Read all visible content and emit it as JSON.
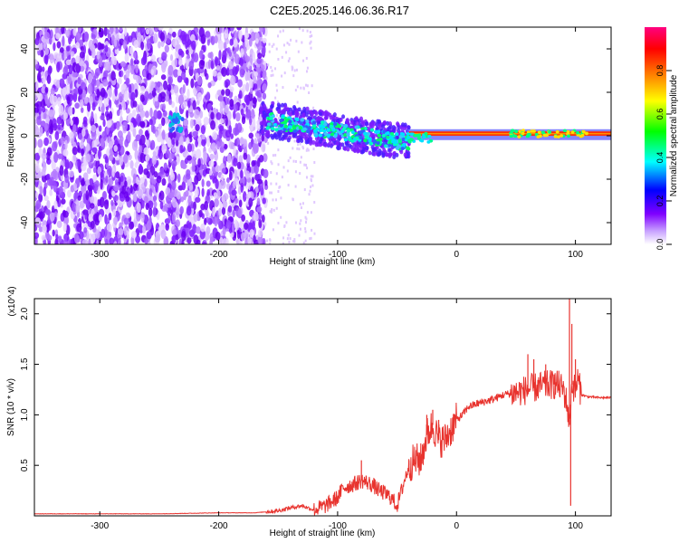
{
  "title": "C2E5.2025.146.06.36.R17",
  "chart_data": [
    {
      "type": "heatmap",
      "xlabel": "Height of straight line (km)",
      "ylabel": "Frequency (Hz)",
      "xlim": [
        -355,
        130
      ],
      "ylim": [
        -50,
        50
      ],
      "xticks": [
        -300,
        -200,
        -100,
        0,
        100
      ],
      "xtick_labels": [
        "-300",
        "-200",
        "-100",
        "0",
        "100"
      ],
      "yticks": [
        -40,
        -20,
        0,
        20,
        40
      ],
      "ytick_labels": [
        "-40",
        "-20",
        "0",
        "20",
        "40"
      ],
      "colorbar": {
        "label": "Normalized spectral amplitude",
        "range": [
          0,
          1
        ],
        "ticks": [
          0.0,
          0.2,
          0.4,
          0.6,
          0.8
        ],
        "tick_labels": [
          "0.0",
          "0.2",
          "0.4",
          "0.6",
          "0.8"
        ],
        "colors": [
          "#ffffff",
          "#7f00ff",
          "#0000ff",
          "#00ffff",
          "#00ff00",
          "#ffff00",
          "#ff8000",
          "#ff0000",
          "#ff0080"
        ]
      },
      "regions": [
        {
          "x": [
            -355,
            -160
          ],
          "freq": [
            -50,
            50
          ],
          "amplitude": 0.1
        },
        {
          "x": [
            -165,
            -120
          ],
          "freq": [
            -5,
            15
          ],
          "amplitude": 0.35
        },
        {
          "x": [
            -120,
            -60
          ],
          "freq": [
            -8,
            10
          ],
          "amplitude": 0.4
        },
        {
          "x": [
            -60,
            -40
          ],
          "freq": [
            -4,
            3
          ],
          "amplitude": 0.45
        },
        {
          "x": [
            -40,
            130
          ],
          "freq": [
            0,
            2
          ],
          "amplitude": 0.9
        },
        {
          "x": [
            45,
            110
          ],
          "freq": [
            -2,
            4
          ],
          "amplitude": 0.6
        }
      ],
      "grid": false
    },
    {
      "type": "line",
      "xlabel": "Height of straight line (km)",
      "ylabel": "SNR (10 * v/v)",
      "y_multiplier": "(x10^4)",
      "xlim": [
        -355,
        130
      ],
      "ylim": [
        0,
        2.15
      ],
      "xticks": [
        -300,
        -200,
        -100,
        0,
        100
      ],
      "xtick_labels": [
        "-300",
        "-200",
        "-100",
        "0",
        "100"
      ],
      "yticks": [
        0.5,
        1.0,
        1.5,
        2.0
      ],
      "ytick_labels": [
        "0.5",
        "1.0",
        "1.5",
        "2.0"
      ],
      "series": [
        {
          "color": "#e8332e",
          "x": [
            -355,
            -300,
            -250,
            -200,
            -170,
            -150,
            -140,
            -130,
            -120,
            -110,
            -100,
            -95,
            -90,
            -85,
            -80,
            -75,
            -70,
            -65,
            -60,
            -55,
            -50,
            -45,
            -40,
            -35,
            -30,
            -25,
            -20,
            -15,
            -10,
            -5,
            0,
            5,
            10,
            20,
            30,
            40,
            50,
            60,
            70,
            80,
            85,
            90,
            93,
            95,
            97,
            100,
            102,
            105,
            110,
            120,
            130
          ],
          "y": [
            0.02,
            0.02,
            0.02,
            0.03,
            0.03,
            0.05,
            0.08,
            0.1,
            0.06,
            0.1,
            0.18,
            0.28,
            0.3,
            0.32,
            0.35,
            0.33,
            0.3,
            0.25,
            0.22,
            0.18,
            0.1,
            0.3,
            0.5,
            0.55,
            0.55,
            0.8,
            0.9,
            0.75,
            0.75,
            0.85,
            0.95,
            1.0,
            1.08,
            1.12,
            1.15,
            1.2,
            1.22,
            1.25,
            1.28,
            1.3,
            1.3,
            1.25,
            1.1,
            0.9,
            1.3,
            1.25,
            1.35,
            1.2,
            1.18,
            1.17,
            1.17
          ],
          "spikes": [
            {
              "x": -80,
              "y": 0.55
            },
            {
              "x": -40,
              "y": 0.55
            },
            {
              "x": -30,
              "y": 0.58
            },
            {
              "x": -25,
              "y": 1.0
            },
            {
              "x": -20,
              "y": 1.05
            },
            {
              "x": -15,
              "y": 0.95
            },
            {
              "x": 60,
              "y": 1.6
            },
            {
              "x": 65,
              "y": 1.55
            },
            {
              "x": 75,
              "y": 1.5
            },
            {
              "x": 82,
              "y": 1.4
            },
            {
              "x": 95,
              "y": 2.15
            },
            {
              "x": 96,
              "y": 0.1
            },
            {
              "x": 97,
              "y": 1.9
            },
            {
              "x": 100,
              "y": 1.55
            }
          ]
        }
      ],
      "grid": false
    }
  ]
}
